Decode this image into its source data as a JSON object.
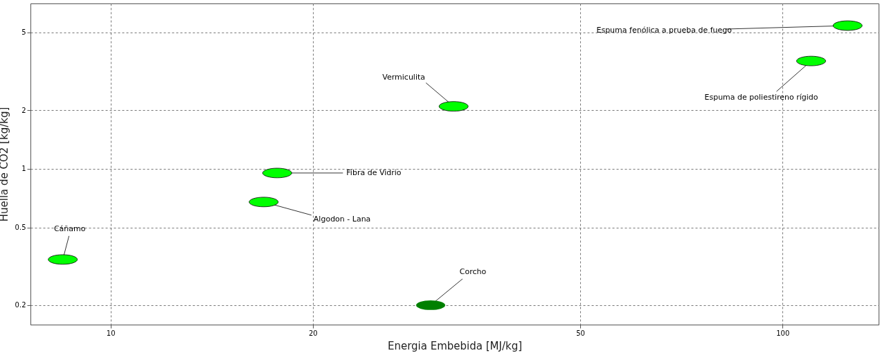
{
  "chart_data": {
    "type": "scatter",
    "xlabel": "Energia Embebida [MJ/kg]",
    "ylabel": "Huella de CO2 [kg/kg]",
    "x": [
      8.49,
      17.7,
      16.9,
      32.4,
      29.95,
      110.3,
      125
    ],
    "values": [
      0.343,
      0.952,
      0.676,
      2.09,
      0.2,
      3.57,
      5.42
    ],
    "colors": [
      "#00ff00",
      "#00ff00",
      "#00ff00",
      "#00ff00",
      "#008000",
      "#00ff00",
      "#00ff00"
    ],
    "annotations": [
      {
        "text": "Cáñamo",
        "x": 8.49,
        "y": 0.343
      },
      {
        "text": "Fibra de Vidrio",
        "x": 17.7,
        "y": 0.952
      },
      {
        "text": "Algodon - Lana",
        "x": 16.9,
        "y": 0.676
      },
      {
        "text": "Vermiculita",
        "x": 32.4,
        "y": 2.09
      },
      {
        "text": "Corcho",
        "x": 29.95,
        "y": 0.2
      },
      {
        "text": "Espuma de poliestireno rígido",
        "x": 110.3,
        "y": 3.57
      },
      {
        "text": "Espuma fenólica a prueba de fuego",
        "x": 125,
        "y": 5.42
      }
    ],
    "xlim": [
      7.6,
      139
    ],
    "ylim": [
      0.159,
      7.04
    ],
    "xticks": [
      10,
      20,
      50,
      100
    ],
    "yticks": [
      0.2,
      0.5,
      1,
      2,
      5
    ],
    "log": "xy",
    "grid": true
  }
}
